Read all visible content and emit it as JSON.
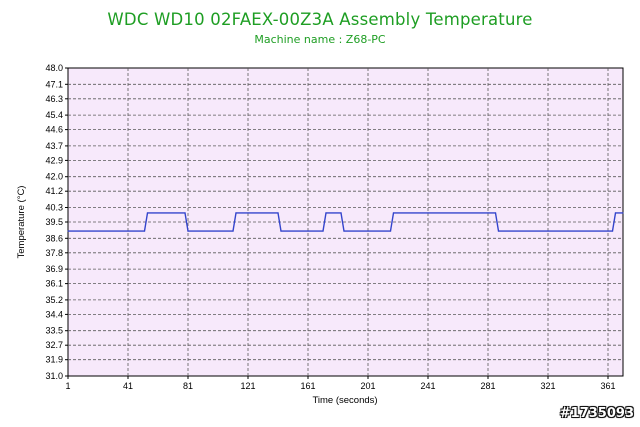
{
  "title": "WDC WD10 02FAEX-00Z3A Assembly Temperature",
  "subtitle": "Machine name : Z68-PC",
  "watermark": "#1735093",
  "colors": {
    "title": "#1e9e23",
    "plot_background": "#f7e9fb",
    "grid": "#5a5a5a",
    "series": "#3344cc"
  },
  "chart_data": {
    "type": "line",
    "title": "WDC WD10 02FAEX-00Z3A Assembly Temperature",
    "subtitle": "Machine name : Z68-PC",
    "xlabel": "Time (seconds)",
    "ylabel": "Temperature (°C)",
    "xlim": [
      1,
      371
    ],
    "ylim": [
      31.0,
      48.0
    ],
    "xticks": [
      "1",
      "41",
      "81",
      "121",
      "161",
      "201",
      "241",
      "281",
      "321",
      "361"
    ],
    "yticks": [
      "48.0",
      "47.1",
      "46.3",
      "45.4",
      "44.6",
      "43.7",
      "42.9",
      "42.0",
      "41.2",
      "40.3",
      "39.5",
      "38.6",
      "37.8",
      "36.9",
      "36.1",
      "35.2",
      "34.4",
      "33.5",
      "32.7",
      "31.9",
      "31.0"
    ],
    "grid": true,
    "legend": "none",
    "series": [
      {
        "x": [
          1,
          52,
          54,
          79,
          81,
          111,
          113,
          141,
          143,
          171,
          173,
          183,
          185,
          216,
          218,
          286,
          288,
          364,
          366,
          371
        ],
        "y": [
          39.0,
          39.0,
          40.0,
          40.0,
          39.0,
          39.0,
          40.0,
          40.0,
          39.0,
          39.0,
          40.0,
          40.0,
          39.0,
          39.0,
          40.0,
          40.0,
          39.0,
          39.0,
          40.0,
          40.0
        ]
      }
    ]
  }
}
